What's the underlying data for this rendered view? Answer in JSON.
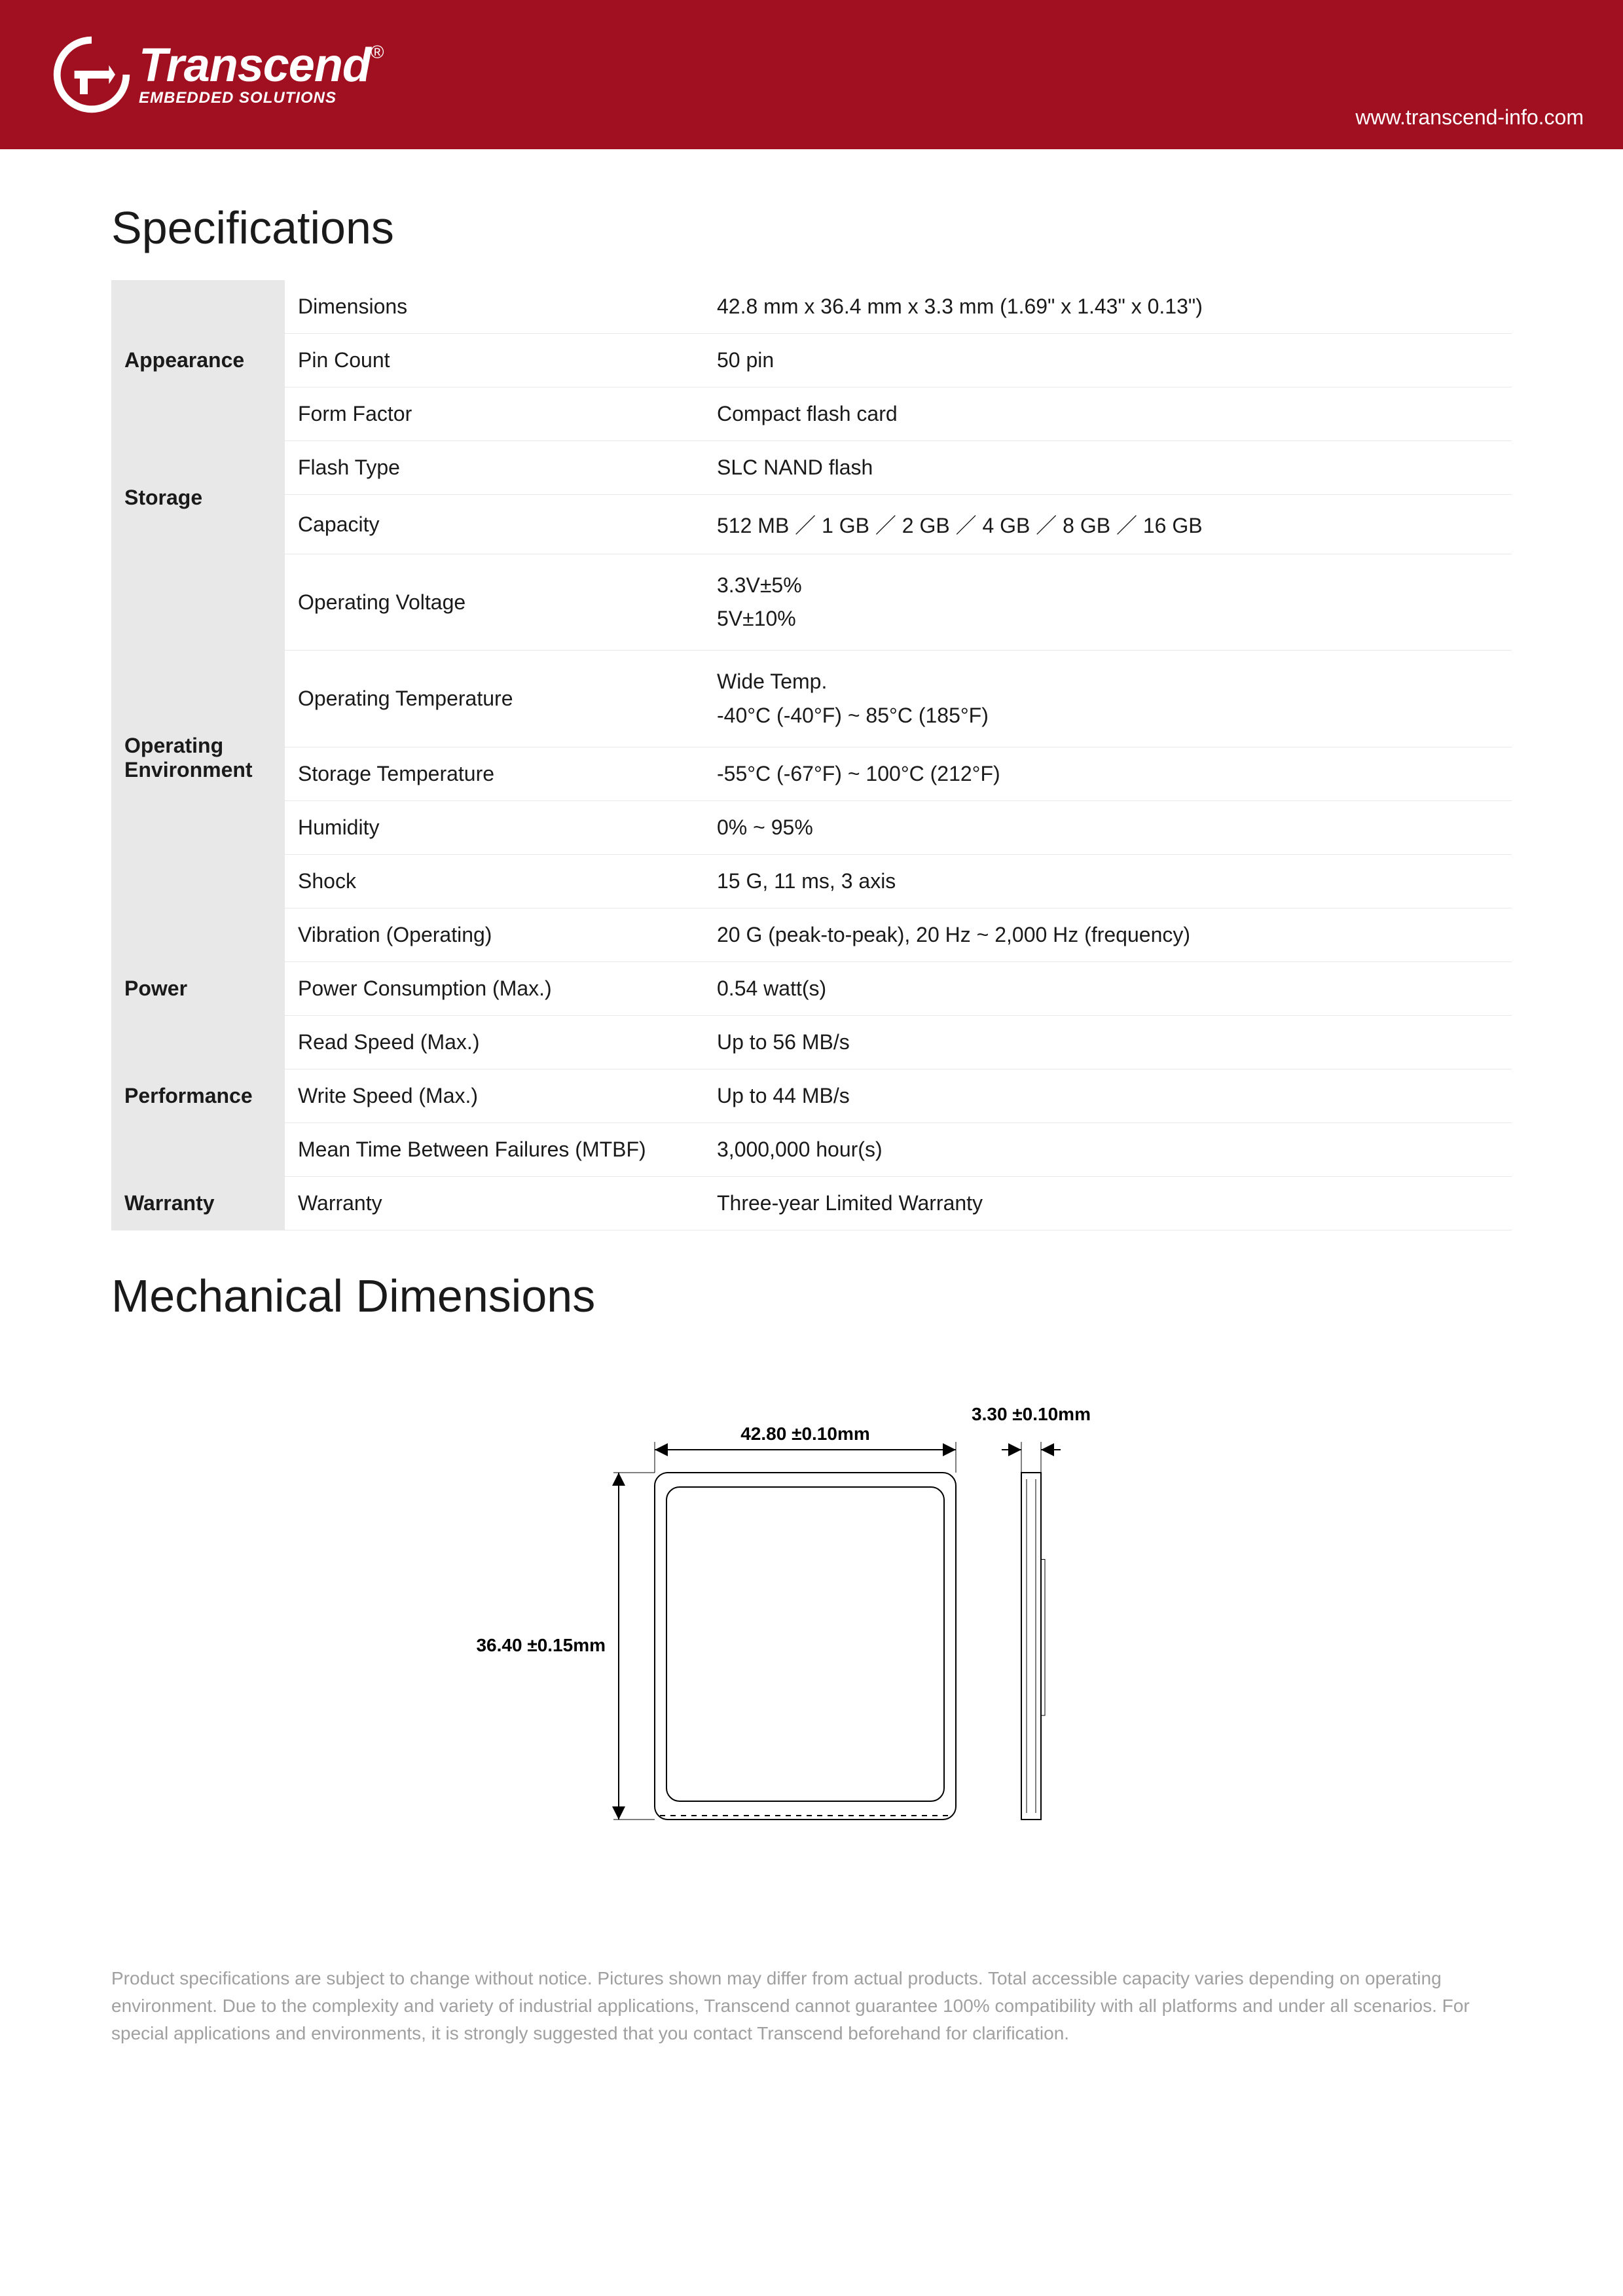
{
  "header": {
    "logo_main": "Transcend",
    "logo_reg": "®",
    "logo_sub": "EMBEDDED SOLUTIONS",
    "url": "www.transcend-info.com"
  },
  "sections": {
    "specifications_title": "Specifications",
    "mechanical_title": "Mechanical Dimensions"
  },
  "spec_table": {
    "categories": [
      {
        "name": "Appearance",
        "rows": [
          {
            "label": "Dimensions",
            "value": "42.8 mm x 36.4 mm x 3.3 mm (1.69\" x 1.43\" x 0.13\")"
          },
          {
            "label": "Pin Count",
            "value": "50 pin"
          },
          {
            "label": "Form Factor",
            "value": "Compact flash card"
          }
        ]
      },
      {
        "name": "Storage",
        "rows": [
          {
            "label": "Flash Type",
            "value": "SLC NAND flash"
          },
          {
            "label": "Capacity",
            "value": "512 MB ／ 1 GB ／ 2 GB ／ 4 GB ／ 8 GB ／ 16 GB"
          }
        ]
      },
      {
        "name": "Operating Environment",
        "rows": [
          {
            "label": "Operating Voltage",
            "value": "3.3V±5%\n5V±10%"
          },
          {
            "label": "Operating Temperature",
            "value": "Wide Temp.\n-40°C (-40°F) ~ 85°C (185°F)"
          },
          {
            "label": "Storage Temperature",
            "value": "-55°C (-67°F) ~ 100°C (212°F)"
          },
          {
            "label": "Humidity",
            "value": "0% ~ 95%"
          },
          {
            "label": "Shock",
            "value": "15 G, 11 ms, 3 axis"
          },
          {
            "label": "Vibration (Operating)",
            "value": "20 G (peak-to-peak), 20 Hz ~ 2,000 Hz (frequency)"
          }
        ]
      },
      {
        "name": "Power",
        "rows": [
          {
            "label": "Power Consumption (Max.)",
            "value": "0.54 watt(s)"
          }
        ]
      },
      {
        "name": "Performance",
        "rows": [
          {
            "label": "Read Speed (Max.)",
            "value": "Up to 56 MB/s"
          },
          {
            "label": "Write Speed (Max.)",
            "value": "Up to 44 MB/s"
          },
          {
            "label": "Mean Time Between Failures (MTBF)",
            "value": "3,000,000 hour(s)"
          }
        ]
      },
      {
        "name": "Warranty",
        "rows": [
          {
            "label": "Warranty",
            "value": "Three-year Limited Warranty"
          }
        ]
      }
    ]
  },
  "diagram": {
    "width_label": "42.80 ±0.10mm",
    "height_label": "36.40 ±0.15mm",
    "thickness_label": "3.30 ±0.10mm",
    "stroke_color": "#000000",
    "stroke_width": 2,
    "fontsize": 28,
    "card_corner_radius": 20,
    "background": "#ffffff"
  },
  "footer": {
    "disclaimer": "Product specifications are subject to change without notice. Pictures shown may differ from actual products. Total accessible capacity varies depending on operating environment. Due to the complexity and variety of industrial applications, Transcend cannot guarantee 100% compatibility with all platforms and under all scenarios. For special applications and environments, it is strongly suggested that you contact Transcend beforehand for clarification."
  }
}
